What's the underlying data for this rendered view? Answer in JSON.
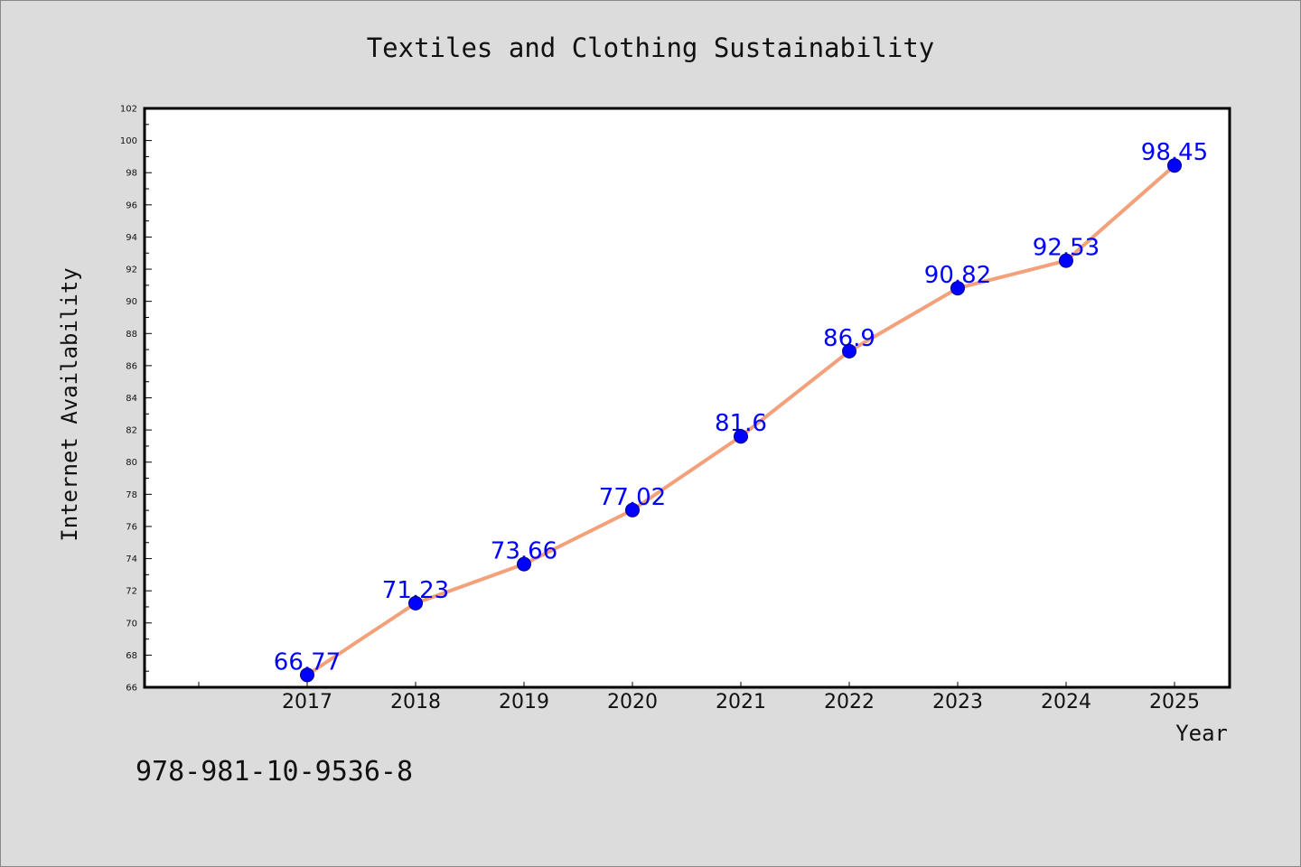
{
  "chart_data": {
    "type": "line",
    "title": "Textiles and Clothing Sustainability",
    "xlabel": "Year",
    "ylabel": "Internet Availability",
    "categories": [
      "2017",
      "2018",
      "2019",
      "2020",
      "2021",
      "2022",
      "2023",
      "2024",
      "2025"
    ],
    "series": [
      {
        "values": [
          66.77,
          71.23,
          73.66,
          77.02,
          81.6,
          86.9,
          90.82,
          92.53,
          98.45
        ],
        "labels": [
          "66.77",
          "71.23",
          "73.66",
          "77.02",
          "81.6",
          "86.9",
          "90.82",
          "92.53",
          "98.45"
        ],
        "line_color": "#f4a07a",
        "marker_color": "#0000ff"
      }
    ],
    "ylim": [
      66,
      102
    ],
    "yticks": [
      "66",
      "68",
      "70",
      "72",
      "74",
      "76",
      "78",
      "80",
      "82",
      "84",
      "86",
      "88",
      "90",
      "92",
      "94",
      "96",
      "98",
      "100",
      "102"
    ],
    "grid": false,
    "legend": "none",
    "background": "#dcdcdc",
    "plot_background": "#ffffff"
  },
  "footer": {
    "text": "978-981-10-9536-8"
  }
}
